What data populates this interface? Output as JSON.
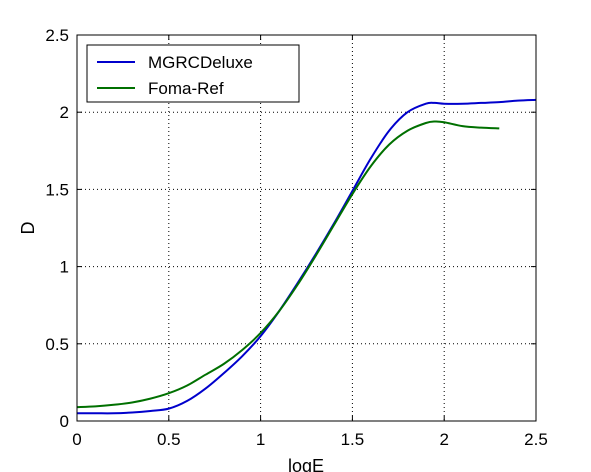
{
  "chart_data": {
    "type": "line",
    "title": "",
    "xlabel": "logE",
    "ylabel": "D",
    "xlim": [
      0,
      2.5
    ],
    "ylim": [
      0,
      2.5
    ],
    "x_ticks": [
      0,
      0.5,
      1,
      1.5,
      2,
      2.5
    ],
    "y_ticks": [
      0,
      0.5,
      1,
      1.5,
      2,
      2.5
    ],
    "x_tick_labels": [
      "0",
      "0.5",
      "1",
      "1.5",
      "2",
      "2.5"
    ],
    "y_tick_labels": [
      "0",
      "0.5",
      "1",
      "1.5",
      "2",
      "2.5"
    ],
    "grid": true,
    "legend_position": "top-left",
    "series": [
      {
        "name": "MGRCDeluxe",
        "color": "#0000cc",
        "x": [
          0,
          0.1,
          0.2,
          0.3,
          0.4,
          0.5,
          0.6,
          0.7,
          0.8,
          0.9,
          1.0,
          1.1,
          1.2,
          1.3,
          1.4,
          1.5,
          1.6,
          1.7,
          1.8,
          1.9,
          1.95,
          2.0,
          2.1,
          2.2,
          2.3,
          2.4,
          2.5
        ],
        "y": [
          0.05,
          0.05,
          0.05,
          0.055,
          0.065,
          0.08,
          0.13,
          0.21,
          0.31,
          0.42,
          0.55,
          0.71,
          0.89,
          1.08,
          1.28,
          1.49,
          1.7,
          1.88,
          2.0,
          2.055,
          2.06,
          2.055,
          2.055,
          2.06,
          2.065,
          2.075,
          2.08
        ]
      },
      {
        "name": "Foma-Ref",
        "color": "#007000",
        "x": [
          0,
          0.1,
          0.2,
          0.3,
          0.4,
          0.5,
          0.6,
          0.7,
          0.8,
          0.9,
          1.0,
          1.1,
          1.2,
          1.3,
          1.4,
          1.5,
          1.6,
          1.7,
          1.8,
          1.9,
          1.95,
          2.0,
          2.1,
          2.2,
          2.3
        ],
        "y": [
          0.09,
          0.095,
          0.105,
          0.12,
          0.145,
          0.18,
          0.23,
          0.3,
          0.37,
          0.46,
          0.57,
          0.71,
          0.88,
          1.07,
          1.27,
          1.47,
          1.65,
          1.79,
          1.88,
          1.93,
          1.94,
          1.935,
          1.91,
          1.9,
          1.895
        ]
      }
    ]
  }
}
